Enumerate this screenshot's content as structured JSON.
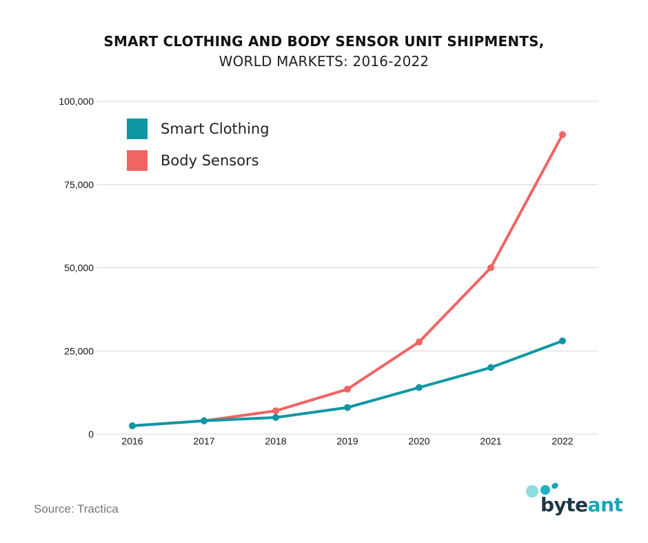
{
  "title": {
    "line1": "SMART CLOTHING AND BODY SENSOR UNIT SHIPMENTS,",
    "line2": "WORLD MARKETS: 2016-2022"
  },
  "source": "Source: Tractica",
  "logo": {
    "part1": "byte",
    "part2": "ant",
    "color1": "#1d3547",
    "color2": "#1aa6b7"
  },
  "colors": {
    "smart_clothing": "#0e97a3",
    "body_sensors": "#f06461",
    "grid": "#d6d6d6"
  },
  "chart_data": {
    "type": "line",
    "title": "SMART CLOTHING AND BODY SENSOR UNIT SHIPMENTS, WORLD MARKETS: 2016-2022",
    "x": [
      "2016",
      "2017",
      "2018",
      "2019",
      "2020",
      "2021",
      "2022"
    ],
    "ylim": [
      0,
      100000
    ],
    "yticks": [
      0,
      25000,
      50000,
      75000,
      100000
    ],
    "ytick_labels": [
      "0",
      "25,000",
      "50,000",
      "75,000",
      "100,000"
    ],
    "grid": true,
    "legend_position": "top-left",
    "series": [
      {
        "name": "Smart Clothing",
        "color": "#0e97a3",
        "values": [
          2500,
          4000,
          5000,
          8000,
          14000,
          20000,
          28000
        ]
      },
      {
        "name": "Body Sensors",
        "color": "#f06461",
        "values": [
          2500,
          4000,
          7000,
          13500,
          27700,
          50000,
          90000
        ]
      }
    ]
  }
}
